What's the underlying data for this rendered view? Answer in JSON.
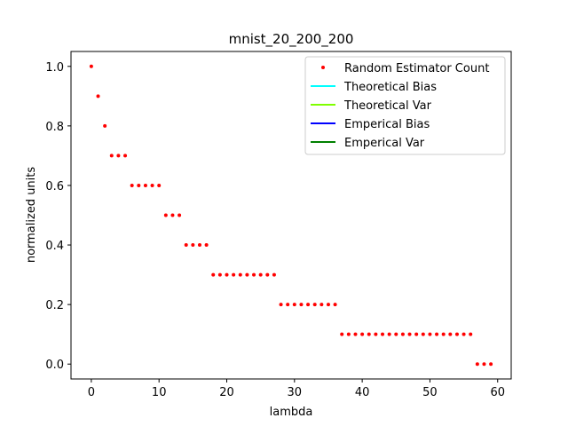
{
  "chart_data": {
    "type": "scatter",
    "title": "mnist_20_200_200",
    "xlabel": "lambda",
    "ylabel": "normalized units",
    "xlim": [
      -3,
      62
    ],
    "ylim": [
      -0.05,
      1.05
    ],
    "xticks": [
      0,
      10,
      20,
      30,
      40,
      50,
      60
    ],
    "yticks": [
      0.0,
      0.2,
      0.4,
      0.6,
      0.8,
      1.0
    ],
    "xtick_labels": [
      "0",
      "10",
      "20",
      "30",
      "40",
      "50",
      "60"
    ],
    "ytick_labels": [
      "0.0",
      "0.2",
      "0.4",
      "0.6",
      "0.8",
      "1.0"
    ],
    "grid": false,
    "legend_position": "top-right",
    "series": [
      {
        "name": "Random Estimator Count",
        "kind": "points",
        "color": "#ff0000",
        "x": [
          0,
          1,
          2,
          3,
          4,
          5,
          6,
          7,
          8,
          9,
          10,
          11,
          12,
          13,
          14,
          15,
          16,
          17,
          18,
          19,
          20,
          21,
          22,
          23,
          24,
          25,
          26,
          27,
          28,
          29,
          30,
          31,
          32,
          33,
          34,
          35,
          36,
          37,
          38,
          39,
          40,
          41,
          42,
          43,
          44,
          45,
          46,
          47,
          48,
          49,
          50,
          51,
          52,
          53,
          54,
          55,
          56,
          57,
          58,
          59
        ],
        "y": [
          1.0,
          0.9,
          0.8,
          0.7,
          0.7,
          0.7,
          0.6,
          0.6,
          0.6,
          0.6,
          0.6,
          0.5,
          0.5,
          0.5,
          0.4,
          0.4,
          0.4,
          0.4,
          0.3,
          0.3,
          0.3,
          0.3,
          0.3,
          0.3,
          0.3,
          0.3,
          0.3,
          0.3,
          0.2,
          0.2,
          0.2,
          0.2,
          0.2,
          0.2,
          0.2,
          0.2,
          0.2,
          0.1,
          0.1,
          0.1,
          0.1,
          0.1,
          0.1,
          0.1,
          0.1,
          0.1,
          0.1,
          0.1,
          0.1,
          0.1,
          0.1,
          0.1,
          0.1,
          0.1,
          0.1,
          0.1,
          0.1,
          0.0,
          0.0,
          0.0
        ]
      },
      {
        "name": "Theoretical Bias",
        "kind": "line",
        "color": "#00ffff",
        "x": [],
        "y": []
      },
      {
        "name": "Theoretical Var",
        "kind": "line",
        "color": "#7fff00",
        "x": [],
        "y": []
      },
      {
        "name": "Emperical Bias",
        "kind": "line",
        "color": "#0000ff",
        "x": [],
        "y": []
      },
      {
        "name": "Emperical Var",
        "kind": "line",
        "color": "#008000",
        "x": [],
        "y": []
      }
    ]
  }
}
